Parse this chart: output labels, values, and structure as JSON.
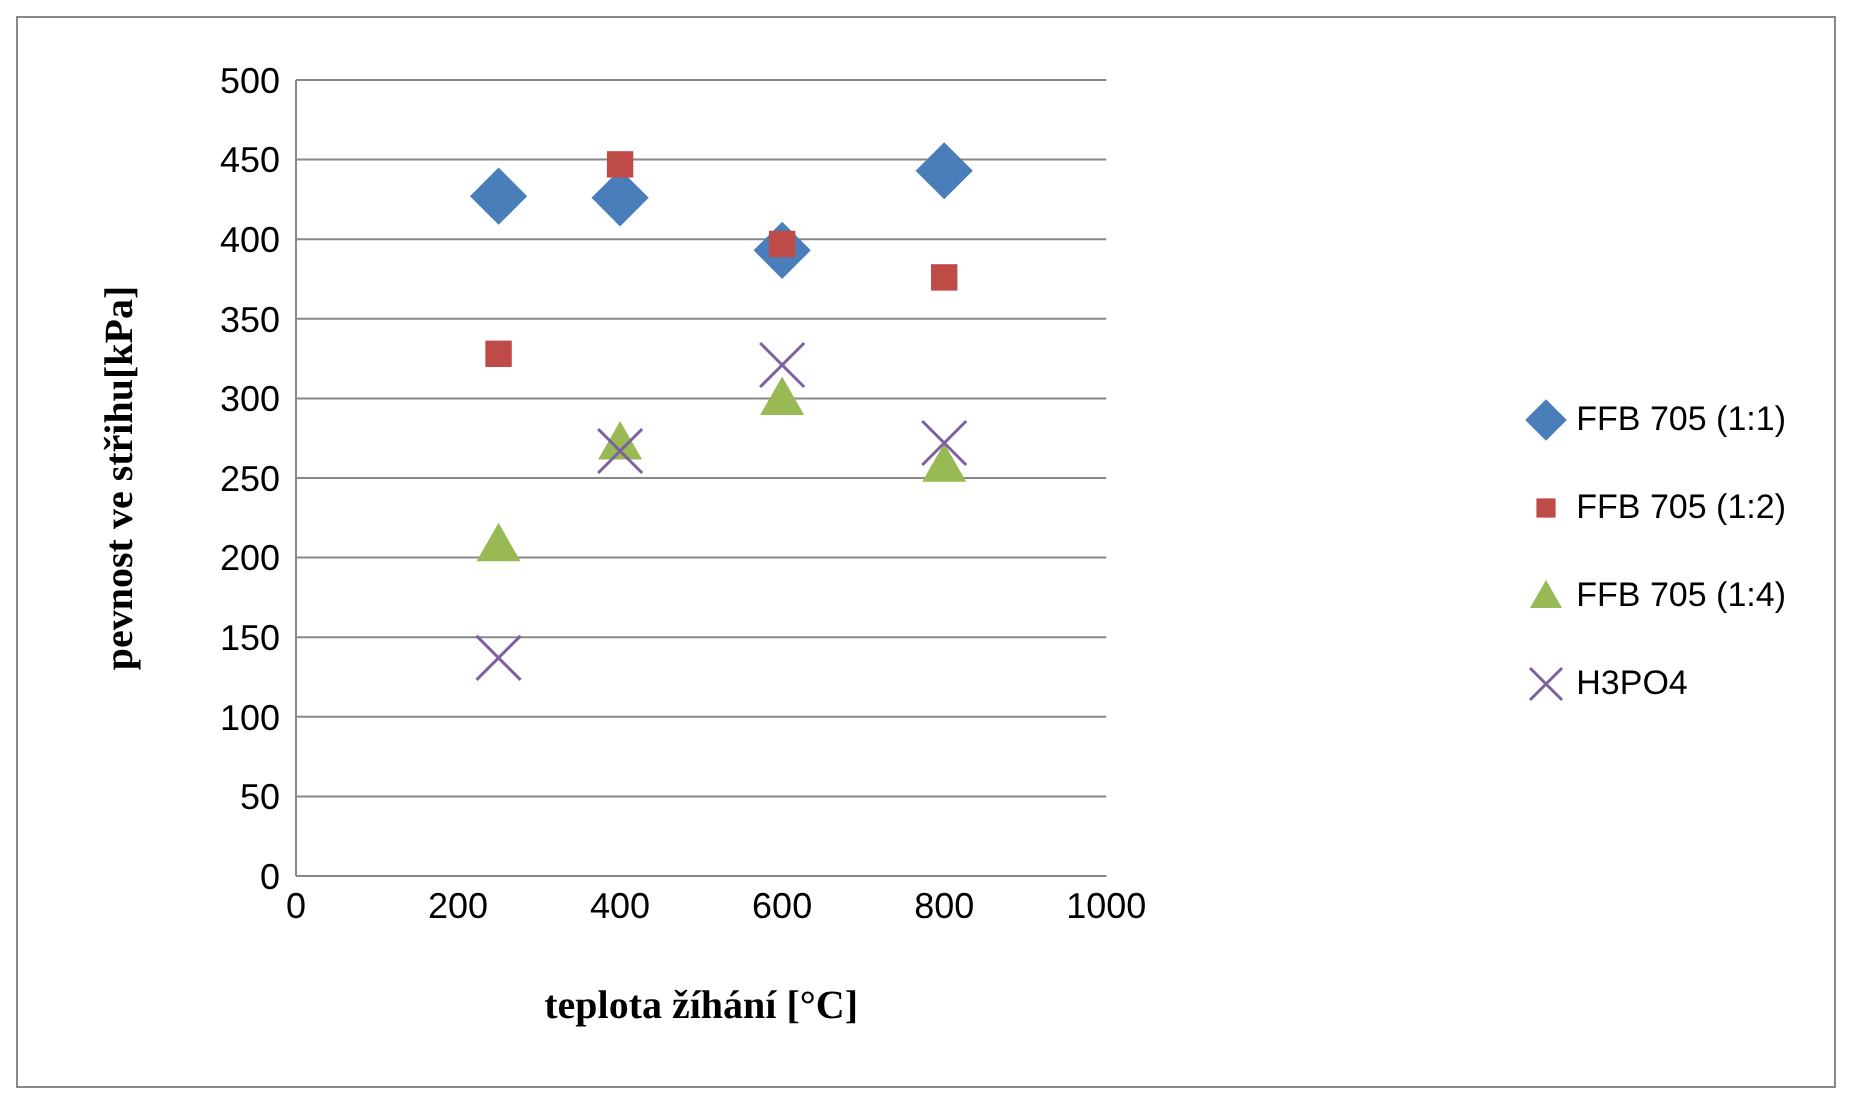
{
  "chart_data": {
    "type": "scatter",
    "xlabel": "teplota žíhání [°C]",
    "ylabel": "pevnost ve střihu[kPa]",
    "x": [
      250,
      400,
      600,
      800
    ],
    "series": [
      {
        "name": "FFB 705 (1:1)",
        "color": "#4a7ebb",
        "marker": "diamond",
        "values": [
          427,
          426,
          393,
          443
        ]
      },
      {
        "name": "FFB 705 (1:2)",
        "color": "#be4b48",
        "marker": "square",
        "values": [
          328,
          447,
          397,
          376
        ]
      },
      {
        "name": "FFB 705 (1:4)",
        "color": "#98b954",
        "marker": "triangle",
        "values": [
          208,
          272,
          300,
          258
        ]
      },
      {
        "name": "H3PO4",
        "color": "#7d60a0",
        "marker": "cross",
        "values": [
          137,
          267,
          321,
          272
        ]
      }
    ],
    "xlim": [
      0,
      1000
    ],
    "xticks": [
      0,
      200,
      400,
      600,
      800,
      1000
    ],
    "ylim": [
      0,
      500
    ],
    "yticks": [
      0,
      50,
      100,
      150,
      200,
      250,
      300,
      350,
      400,
      450,
      500
    ],
    "grid": "y",
    "legend": "right"
  }
}
